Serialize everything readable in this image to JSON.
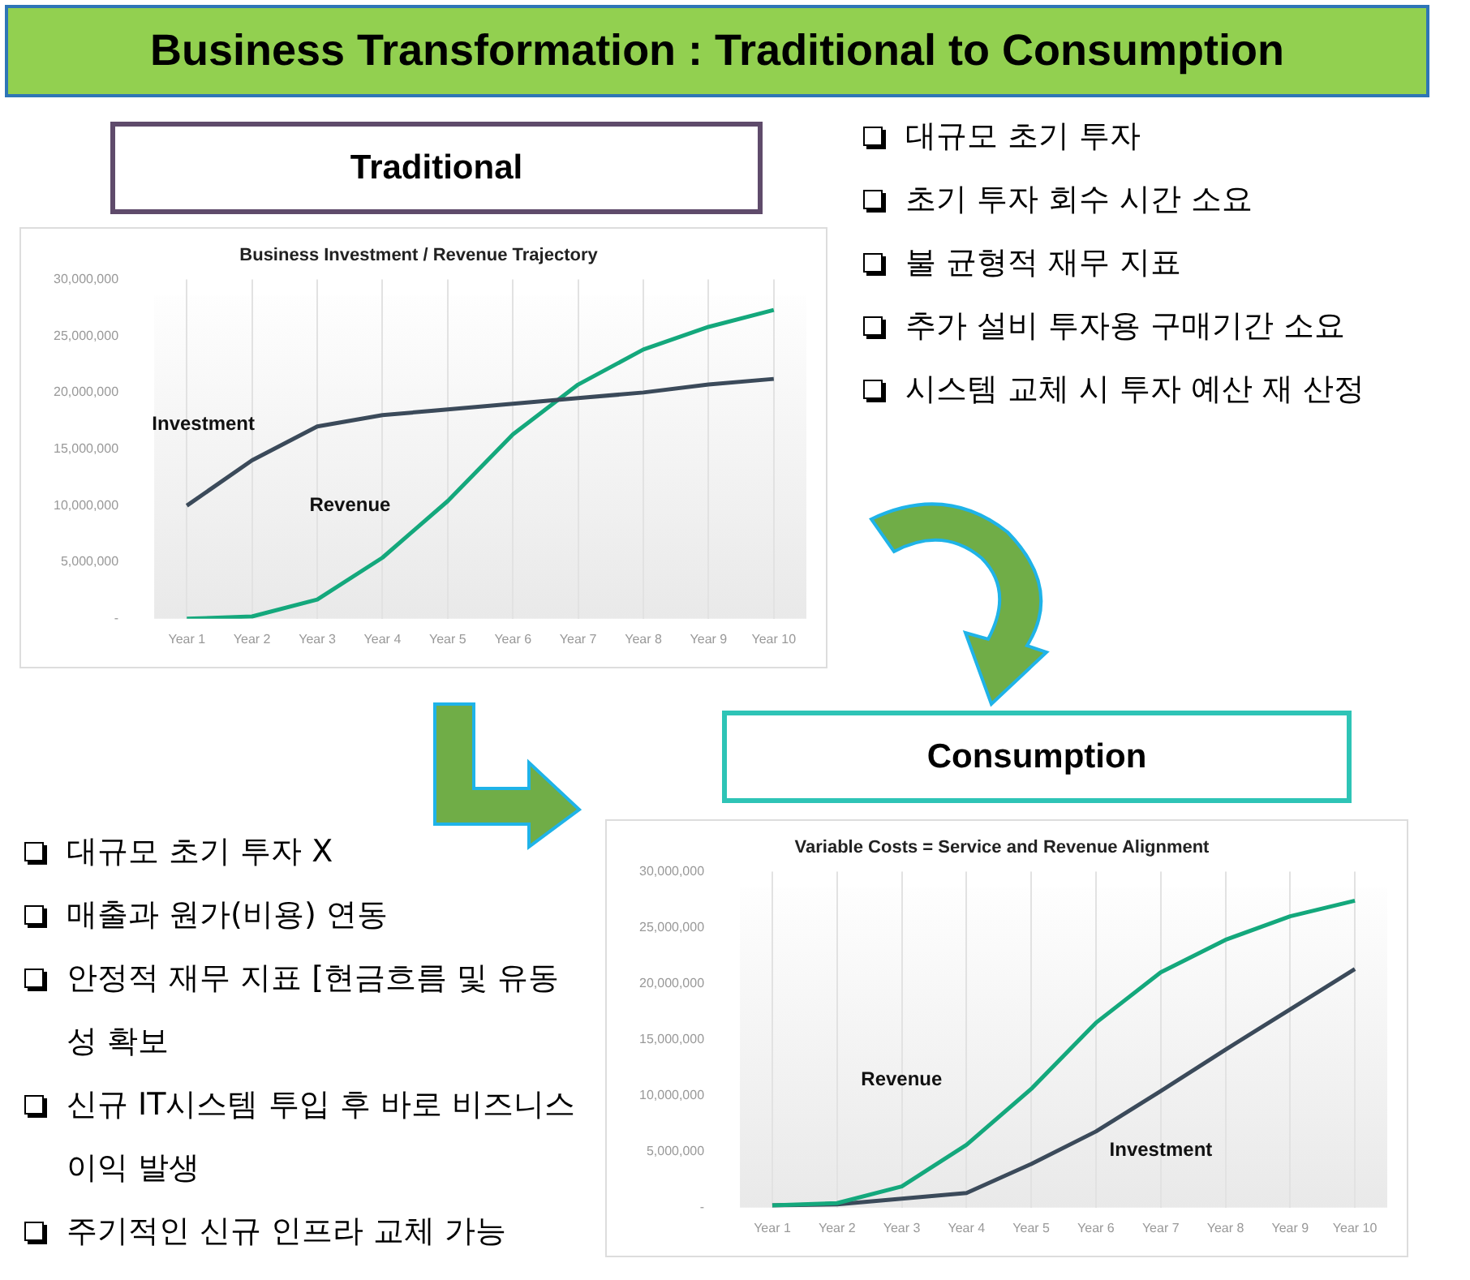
{
  "chart_data": [
    {
      "type": "other",
      "title": "Business Transformation : Traditional to Consumption"
    },
    {
      "type": "other",
      "title": "Traditional",
      "annotations": [
        "대규모 초기 투자",
        "초기 투자 회수 시간 소요",
        "불 균형적 재무 지표",
        "추가 설비 투자용 구매기간 소요",
        "시스템 교체 시 투자 예산 재 산정"
      ]
    },
    {
      "type": "line",
      "title": "Business Investment / Revenue Trajectory",
      "categories": [
        "Year 1",
        "Year 2",
        "Year 3",
        "Year 4",
        "Year 5",
        "Year 6",
        "Year 7",
        "Year 8",
        "Year 9",
        "Year 10"
      ],
      "series": [
        {
          "name": "Investment",
          "color": "#3b4a5a",
          "values": [
            10000000,
            14000000,
            17000000,
            18000000,
            18500000,
            19000000,
            19500000,
            20000000,
            20700000,
            21200000
          ]
        },
        {
          "name": "Revenue",
          "color": "#14a87c",
          "values": [
            0,
            200000,
            1700000,
            5400000,
            10400000,
            16300000,
            20700000,
            23800000,
            25800000,
            27300000
          ]
        }
      ],
      "ylim": [
        0,
        30000000
      ],
      "yticks": [
        {
          "value": 0,
          "label": "-"
        },
        {
          "value": 5000000,
          "label": "5,000,000"
        },
        {
          "value": 10000000,
          "label": "10,000,000"
        },
        {
          "value": 15000000,
          "label": "15,000,000"
        },
        {
          "value": 20000000,
          "label": "20,000,000"
        },
        {
          "value": 25000000,
          "label": "25,000,000"
        },
        {
          "value": 30000000,
          "label": "30,000,000"
        }
      ],
      "grid": "x"
    },
    {
      "type": "other",
      "title": "Consumption",
      "annotations": [
        "대규모 초기 투자 X",
        "매출과 원가(비용) 연동",
        "안정적 재무 지표 [현금흐름 및 유동성 확보",
        "신규 IT시스템 투입 후 바로 비즈니스 이익 발생",
        "주기적인 신규 인프라 교체 가능"
      ]
    },
    {
      "type": "line",
      "title": "Variable Costs = Service and Revenue Alignment",
      "categories": [
        "Year 1",
        "Year 2",
        "Year 3",
        "Year 4",
        "Year 5",
        "Year 6",
        "Year 7",
        "Year 8",
        "Year 9",
        "Year 10"
      ],
      "series": [
        {
          "name": "Revenue",
          "color": "#14a87c",
          "values": [
            200000,
            400000,
            1900000,
            5600000,
            10600000,
            16500000,
            21000000,
            23900000,
            26000000,
            27400000
          ]
        },
        {
          "name": "Investment",
          "color": "#3b4a5a",
          "values": [
            200000,
            300000,
            800000,
            1300000,
            3900000,
            6800000,
            10400000,
            14100000,
            17700000,
            21300000
          ]
        }
      ],
      "ylim": [
        0,
        30000000
      ],
      "yticks": [
        {
          "value": 0,
          "label": "-"
        },
        {
          "value": 5000000,
          "label": "5,000,000"
        },
        {
          "value": 10000000,
          "label": "10,000,000"
        },
        {
          "value": 15000000,
          "label": "15,000,000"
        },
        {
          "value": 20000000,
          "label": "20,000,000"
        },
        {
          "value": 25000000,
          "label": "25,000,000"
        },
        {
          "value": 30000000,
          "label": "30,000,000"
        }
      ],
      "grid": "x"
    }
  ]
}
